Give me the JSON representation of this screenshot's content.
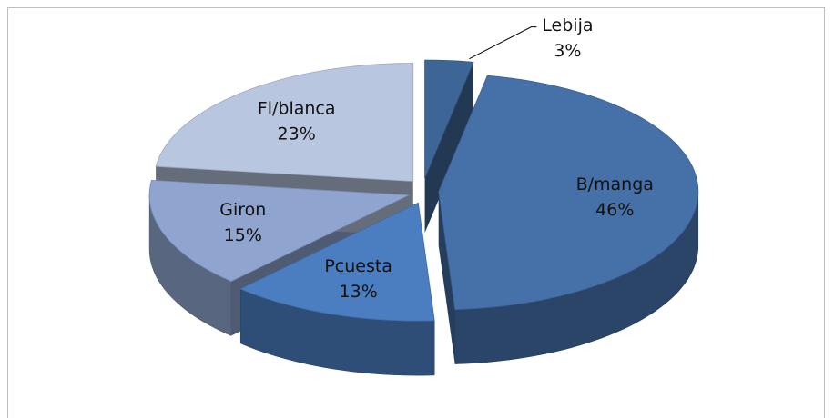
{
  "chart_data": {
    "type": "pie3d",
    "categories": [
      "Lebija",
      "B/manga",
      "Pcuesta",
      "Giron",
      "Fl/blanca"
    ],
    "values": [
      3,
      46,
      13,
      15,
      23
    ],
    "value_labels": [
      "3%",
      "46%",
      "13%",
      "15%",
      "23%"
    ],
    "colors": [
      "#3d6596",
      "#4570a8",
      "#4a7ec0",
      "#8fa5cf",
      "#b8c6e0"
    ]
  }
}
